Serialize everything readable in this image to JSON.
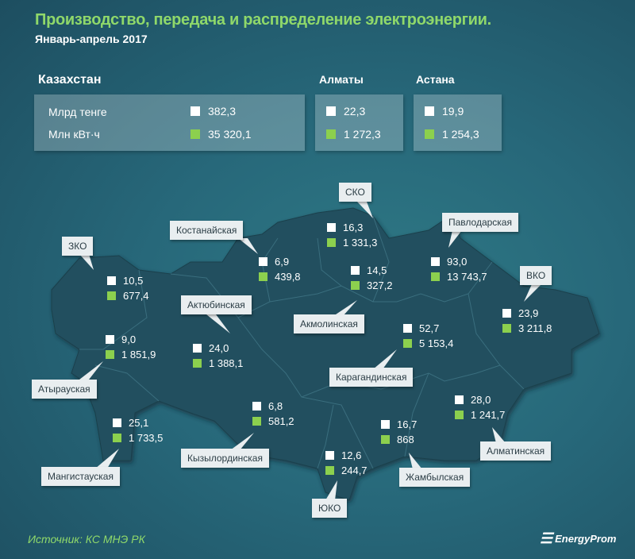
{
  "title": "Производство, передача и распределение электроэнергии.",
  "subtitle": "Январь-апрель  2017",
  "colors": {
    "money": "#ffffff",
    "energy": "#8cd04e",
    "title": "#8fd86a"
  },
  "summary": {
    "kazakhstan": {
      "name": "Казахстан",
      "money_label": "Млрд тенге",
      "energy_label": "Млн кВт·ч",
      "money": "382,3",
      "energy": "35 320,1"
    },
    "almaty": {
      "name": "Алматы",
      "money": "22,3",
      "energy": "1 272,3"
    },
    "astana": {
      "name": "Астана",
      "money": "19,9",
      "energy": "1 254,3"
    }
  },
  "regions": [
    {
      "name": "ЗКО",
      "money": "10,5",
      "energy": "677,4"
    },
    {
      "name": "Атырауская",
      "money": "9,0",
      "energy": "1 851,9"
    },
    {
      "name": "Мангистауская",
      "money": "25,1",
      "energy": "1 733,5"
    },
    {
      "name": "Актюбинская",
      "money": "24,0",
      "energy": "1 388,1"
    },
    {
      "name": "Костанайская",
      "money": "6,9",
      "energy": "439,8"
    },
    {
      "name": "СКО",
      "money": "16,3",
      "energy": "1 331,3"
    },
    {
      "name": "Павлодарская",
      "money": "93,0",
      "energy": "13 743,7"
    },
    {
      "name": "Акмолинская",
      "money": "14,5",
      "energy": "327,2"
    },
    {
      "name": "ВКО",
      "money": "23,9",
      "energy": "3 211,8"
    },
    {
      "name": "Карагандинская",
      "money": "52,7",
      "energy": "5 153,4"
    },
    {
      "name": "Кызылординская",
      "money": "6,8",
      "energy": "581,2"
    },
    {
      "name": "Жамбылская",
      "money": "16,7",
      "energy": "868"
    },
    {
      "name": "Алматинская",
      "money": "28,0",
      "energy": "1 241,7"
    },
    {
      "name": "ЮКО",
      "money": "12,6",
      "energy": "244,7"
    }
  ],
  "source": "Источник: КС МНЭ РК",
  "logo": "EnergyProm"
}
